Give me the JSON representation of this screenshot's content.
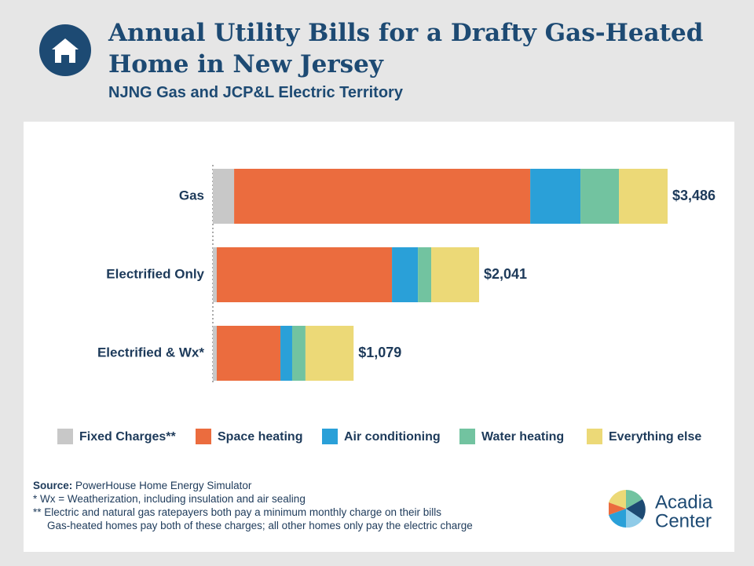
{
  "chart_data": {
    "type": "stacked-barh",
    "title": "Annual Utility Bills for a Drafty Gas-Heated Home in New Jersey",
    "subtitle": "NJNG Gas and JCP&L Electric Territory",
    "categories": [
      "Gas",
      "Electrified Only",
      "Electrified & Wx*"
    ],
    "series": [
      {
        "name": "Fixed Charges**",
        "color": "#c8c8c8",
        "values": [
          163,
          30,
          30
        ]
      },
      {
        "name": "Space heating",
        "color": "#eb6c3e",
        "values": [
          2270,
          1343,
          488
        ]
      },
      {
        "name": "Air conditioning",
        "color": "#2aa0d8",
        "values": [
          385,
          199,
          90
        ]
      },
      {
        "name": "Water heating",
        "color": "#72c3a0",
        "values": [
          295,
          102,
          102
        ]
      },
      {
        "name": "Everything else",
        "color": "#ecd977",
        "values": [
          373,
          367,
          369
        ]
      }
    ],
    "totals": [
      3486,
      2041,
      1079
    ],
    "total_labels": [
      "$3,486",
      "$2,041",
      "$1,079"
    ],
    "legend": "bottom"
  },
  "footnotes": {
    "source_label": "Source:",
    "source": "PowerHouse Home Energy Simulator",
    "notes": [
      "* Wx = Weatherization, including insulation and air sealing",
      "** Electric and natural gas ratepayers both pay a minimum monthly charge on their bills",
      "Gas-heated homes pay both of these charges; all other homes only pay the electric charge"
    ]
  },
  "logo": {
    "line1": "Acadia",
    "line2": "Center"
  }
}
